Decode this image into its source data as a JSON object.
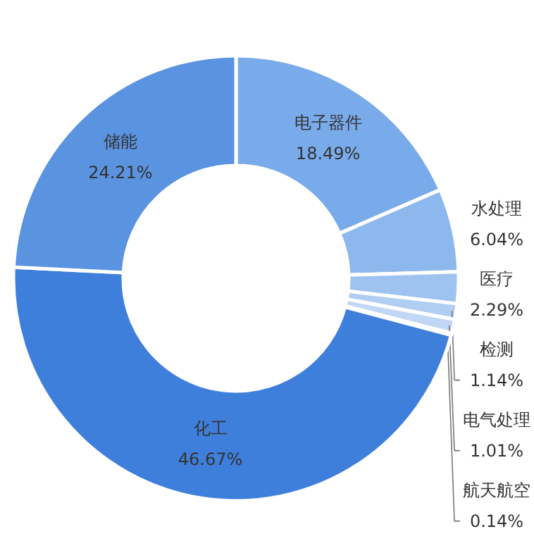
{
  "chart_data": {
    "type": "donut",
    "categories": [
      "电子器件",
      "水处理",
      "医疗",
      "检测",
      "电气处理",
      "航天航空",
      "化工",
      "储能"
    ],
    "values": [
      18.49,
      6.04,
      2.29,
      1.14,
      1.01,
      0.14,
      46.67,
      24.21
    ],
    "value_labels": [
      "18.49%",
      "6.04%",
      "2.29%",
      "1.14%",
      "1.01%",
      "0.14%",
      "46.67%",
      "24.21%"
    ],
    "colors": [
      "#79aaea",
      "#8db8ee",
      "#9fc3f0",
      "#b0cdf2",
      "#c0d8f5",
      "#cfe1f7",
      "#3f7fdc",
      "#5a93e0"
    ]
  }
}
